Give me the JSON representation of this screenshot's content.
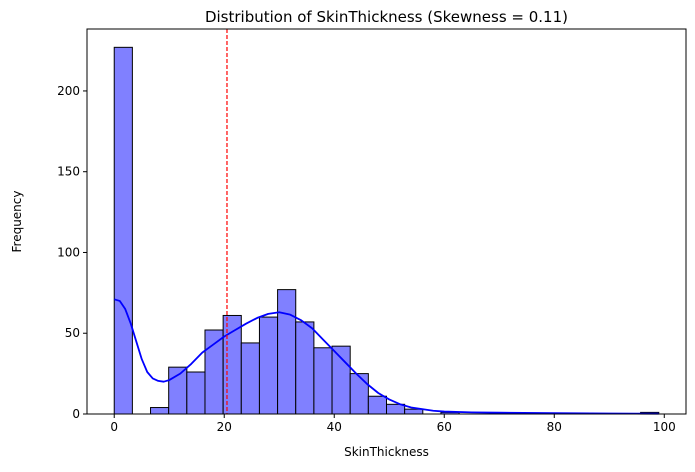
{
  "chart_data": {
    "type": "bar",
    "title": "Distribution of SkinThickness (Skewness = 0.11)",
    "xlabel": "SkinThickness",
    "ylabel": "Frequency",
    "xlim": [
      -4.95,
      103.95
    ],
    "ylim": [
      0,
      238.35
    ],
    "x_ticks": [
      0,
      20,
      40,
      60,
      80,
      100
    ],
    "y_ticks": [
      0,
      50,
      100,
      150,
      200
    ],
    "grid": false,
    "bin_width": 3.3,
    "bins": [
      {
        "start": 0.0,
        "count": 227
      },
      {
        "start": 3.3,
        "count": 0
      },
      {
        "start": 6.6,
        "count": 4
      },
      {
        "start": 9.9,
        "count": 29
      },
      {
        "start": 13.2,
        "count": 26
      },
      {
        "start": 16.5,
        "count": 52
      },
      {
        "start": 19.8,
        "count": 61
      },
      {
        "start": 23.1,
        "count": 44
      },
      {
        "start": 26.4,
        "count": 60
      },
      {
        "start": 29.7,
        "count": 77
      },
      {
        "start": 33.0,
        "count": 57
      },
      {
        "start": 36.3,
        "count": 41
      },
      {
        "start": 39.6,
        "count": 42
      },
      {
        "start": 42.9,
        "count": 25
      },
      {
        "start": 46.2,
        "count": 11
      },
      {
        "start": 49.5,
        "count": 6
      },
      {
        "start": 52.8,
        "count": 3
      },
      {
        "start": 56.1,
        "count": 0
      },
      {
        "start": 59.4,
        "count": 1
      },
      {
        "start": 62.7,
        "count": 0
      },
      {
        "start": 66.0,
        "count": 0
      },
      {
        "start": 69.3,
        "count": 0
      },
      {
        "start": 72.6,
        "count": 0
      },
      {
        "start": 75.9,
        "count": 0
      },
      {
        "start": 79.2,
        "count": 0
      },
      {
        "start": 82.5,
        "count": 0
      },
      {
        "start": 85.8,
        "count": 0
      },
      {
        "start": 89.1,
        "count": 0
      },
      {
        "start": 92.4,
        "count": 0
      },
      {
        "start": 95.7,
        "count": 1
      }
    ],
    "kde": {
      "x": [
        0,
        1,
        2,
        3,
        4,
        5,
        6,
        7,
        8,
        9,
        10,
        12,
        14,
        16,
        18,
        20,
        22,
        24,
        26,
        28,
        30,
        32,
        34,
        36,
        38,
        40,
        42,
        44,
        46,
        48,
        50,
        52,
        54,
        56,
        58,
        60,
        65,
        70,
        80,
        90,
        99
      ],
      "y": [
        71,
        70,
        65,
        56,
        45,
        34,
        26,
        22,
        20.5,
        20,
        21,
        25,
        31,
        38,
        43,
        48,
        52,
        56,
        59.5,
        62,
        63,
        61.5,
        58,
        53,
        46,
        39,
        32,
        25,
        18.5,
        13,
        9,
        6,
        4,
        3,
        2,
        1.5,
        1,
        0.8,
        0.5,
        0.3,
        0.2
      ]
    },
    "reference_line": {
      "x": 20.5
    },
    "colors": {
      "bar_fill": "#8080ff",
      "bar_edge": "#000000",
      "kde": "#0000ff",
      "reference_line": "#ff0000"
    }
  }
}
